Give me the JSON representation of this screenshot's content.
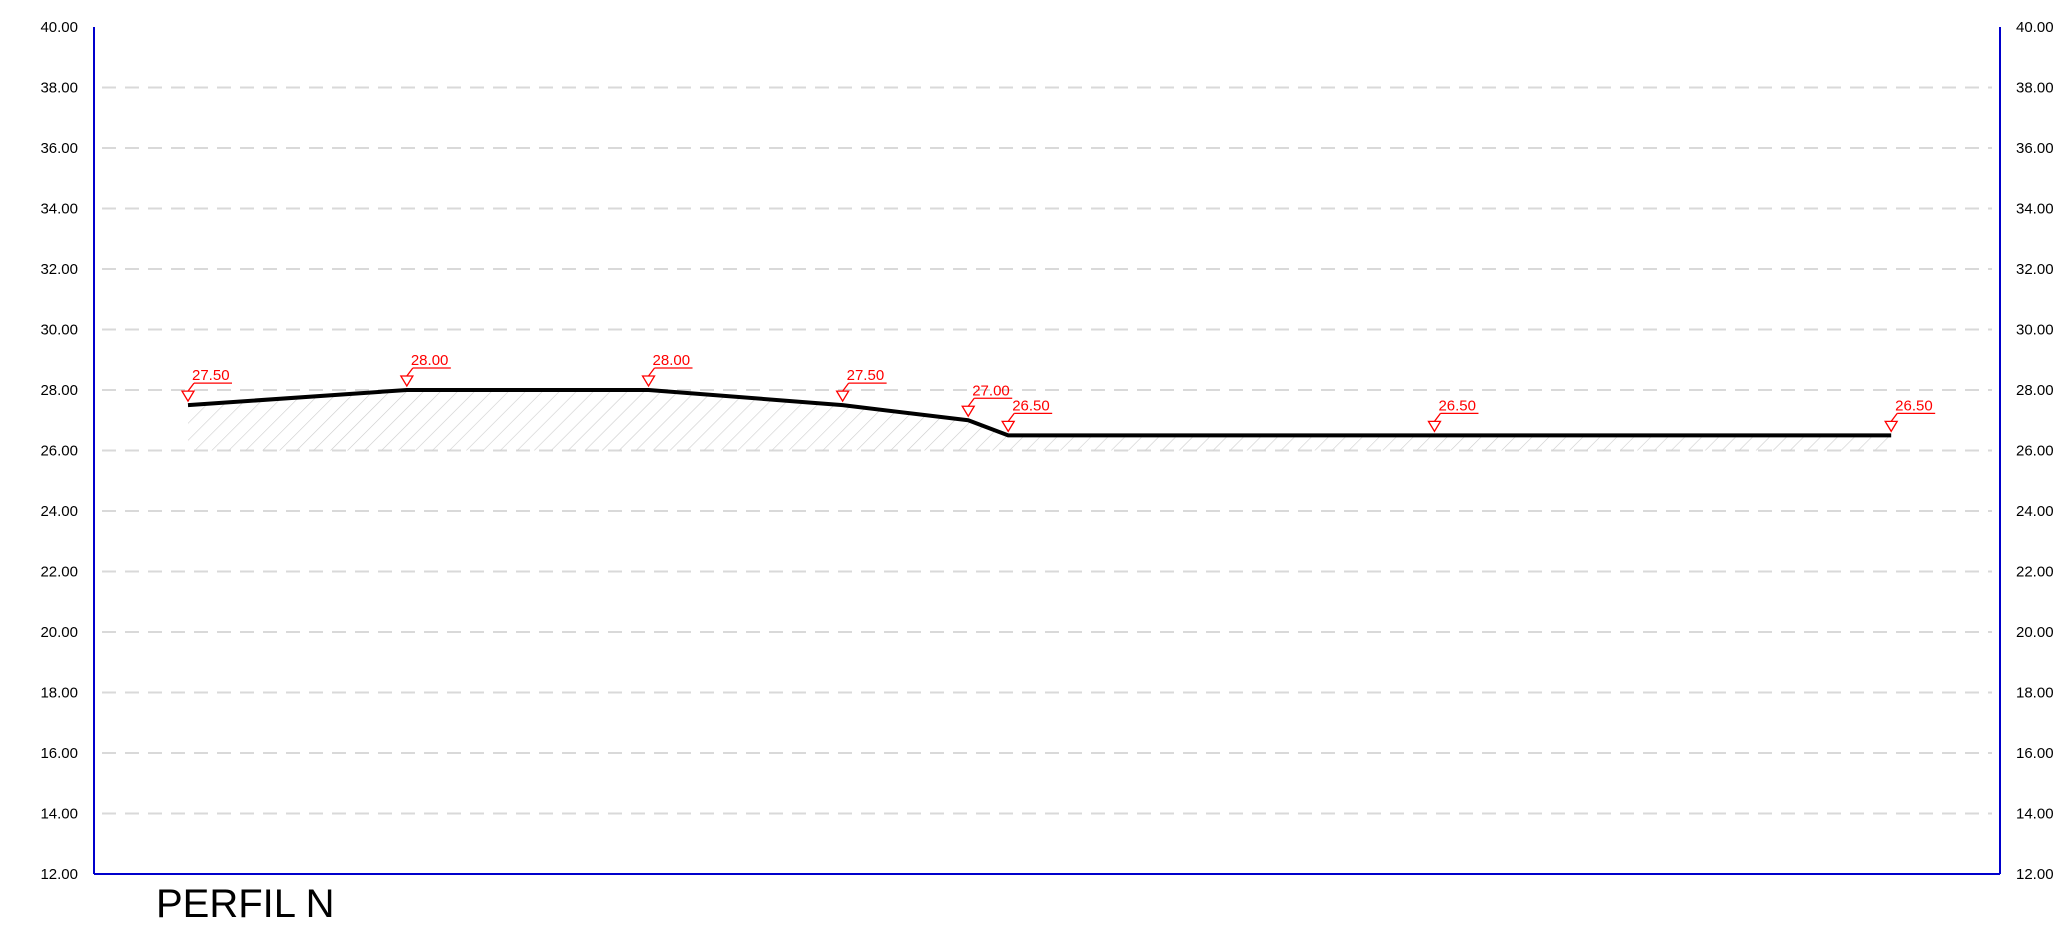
{
  "title": "PERFIL N",
  "colors": {
    "frame": "#0000cc",
    "grid": "#d9d9d9",
    "profile_line": "#000000",
    "elevation_marker": "#ff0000",
    "hatch": "#cccccc"
  },
  "chart_data": {
    "type": "line",
    "title": "PERFIL N",
    "xlabel": "",
    "ylabel": "",
    "ylim": [
      12,
      40
    ],
    "y_ticks": [
      "40.00",
      "38.00",
      "36.00",
      "34.00",
      "32.00",
      "30.00",
      "28.00",
      "26.00",
      "24.00",
      "22.00",
      "20.00",
      "18.00",
      "16.00",
      "14.00",
      "12.00"
    ],
    "y_axis_sides": [
      "left",
      "right"
    ],
    "grid": "horizontal-dashed",
    "datum": 26,
    "series": [
      {
        "x": [
          0,
          11.5,
          24.2,
          34.4,
          41.0,
          43.1,
          65.5,
          89.5
        ],
        "values": [
          27.5,
          28.0,
          28.0,
          27.5,
          27.0,
          26.5,
          26.5,
          26.5
        ]
      }
    ],
    "elevation_labels": [
      {
        "x": 0,
        "y": 27.5,
        "text": "27.50"
      },
      {
        "x": 11.5,
        "y": 28.0,
        "text": "28.00"
      },
      {
        "x": 24.2,
        "y": 28.0,
        "text": "28.00"
      },
      {
        "x": 34.4,
        "y": 27.5,
        "text": "27.50"
      },
      {
        "x": 41.0,
        "y": 27.0,
        "text": "27.00"
      },
      {
        "x": 43.1,
        "y": 26.5,
        "text": "26.50"
      },
      {
        "x": 65.5,
        "y": 26.5,
        "text": "26.50"
      },
      {
        "x": 89.5,
        "y": 26.5,
        "text": "26.50"
      }
    ]
  }
}
